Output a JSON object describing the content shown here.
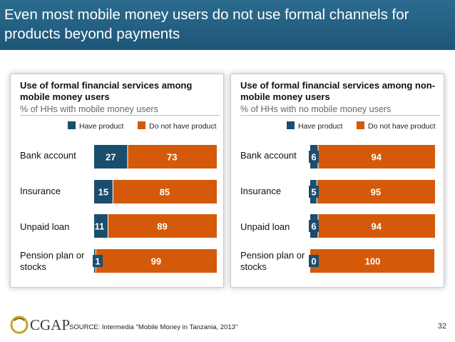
{
  "title": "Even most mobile money users do not use formal channels for products beyond payments",
  "colors": {
    "have": "#1b4e6e",
    "not_have": "#d45a0a",
    "title_bar": "#25628a"
  },
  "legend": {
    "have": "Have product",
    "not_have": "Do not have product"
  },
  "chart_data": [
    {
      "type": "bar",
      "stacked": true,
      "orientation": "horizontal",
      "title": "Use of formal financial services among mobile money users",
      "subtitle": "% of HHs with mobile money users",
      "categories": [
        "Bank account",
        "Insurance",
        "Unpaid loan",
        "Pension plan or stocks"
      ],
      "series": [
        {
          "name": "Have product",
          "values": [
            27,
            15,
            11,
            1
          ]
        },
        {
          "name": "Do not have product",
          "values": [
            73,
            85,
            89,
            99
          ]
        }
      ],
      "xlim": [
        0,
        100
      ],
      "legend_position": "top-right"
    },
    {
      "type": "bar",
      "stacked": true,
      "orientation": "horizontal",
      "title": "Use of formal financial services among non-mobile money users",
      "subtitle": "% of HHs with no mobile money users",
      "categories": [
        "Bank account",
        "Insurance",
        "Unpaid loan",
        "Pension plan or stocks"
      ],
      "series": [
        {
          "name": "Have product",
          "values": [
            6,
            5,
            6,
            0
          ]
        },
        {
          "name": "Do not have product",
          "values": [
            94,
            95,
            94,
            100
          ]
        }
      ],
      "xlim": [
        0,
        100
      ],
      "legend_position": "top-right"
    }
  ],
  "footer": {
    "logo": "CGAP",
    "source": "SOURCE: Intermedia \"Mobile Money in Tanzania, 2013\"",
    "page_number": "32"
  }
}
